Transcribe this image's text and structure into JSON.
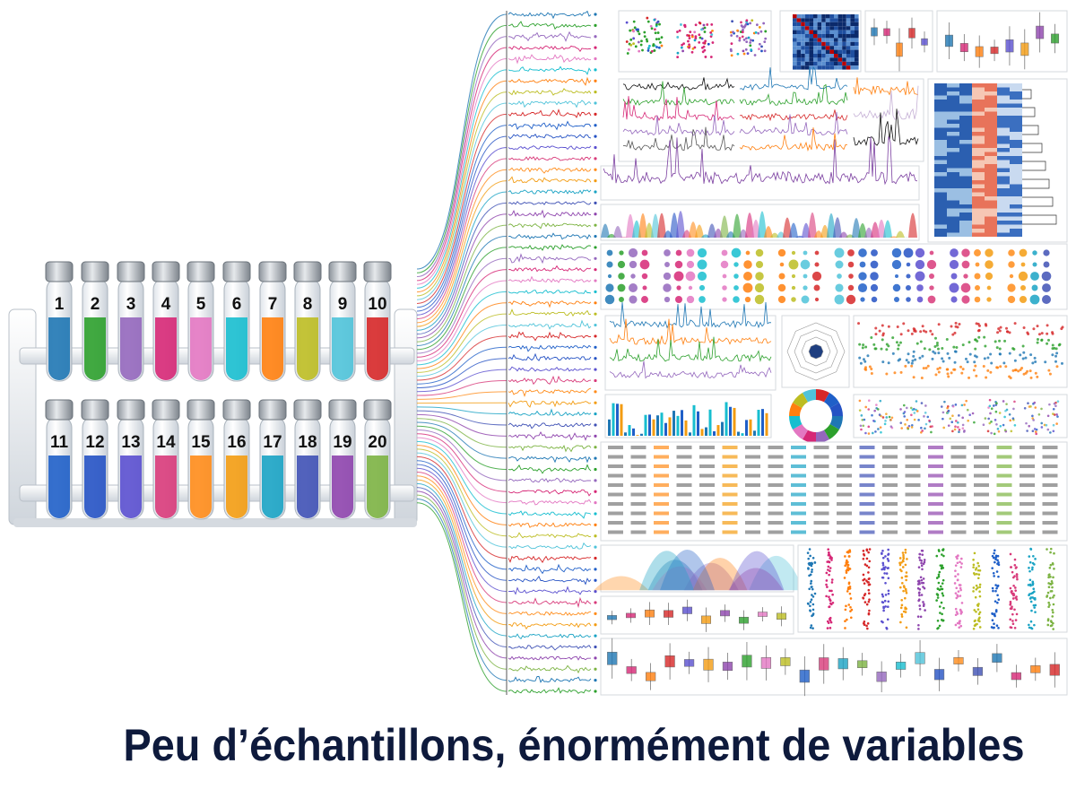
{
  "tubes": {
    "top": [
      "1",
      "2",
      "3",
      "4",
      "5",
      "6",
      "7",
      "8",
      "9",
      "10"
    ],
    "bottom": [
      "11",
      "12",
      "13",
      "14",
      "15",
      "16",
      "17",
      "18",
      "19",
      "20"
    ]
  },
  "title": "Peu d’échantillons, énormément de variables"
}
